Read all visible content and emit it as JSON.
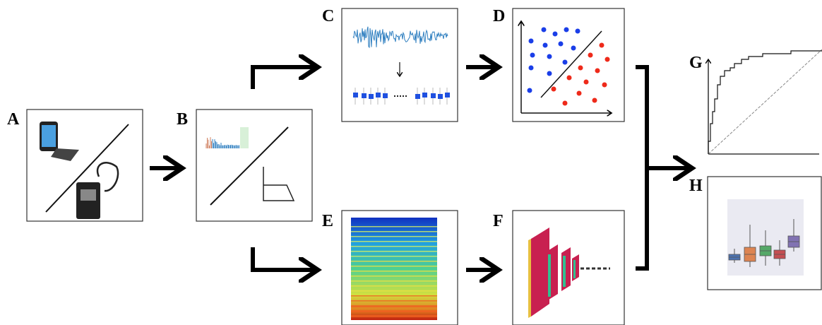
{
  "labels": [
    "A",
    "B",
    "C",
    "D",
    "E",
    "F",
    "G",
    "H"
  ]
}
